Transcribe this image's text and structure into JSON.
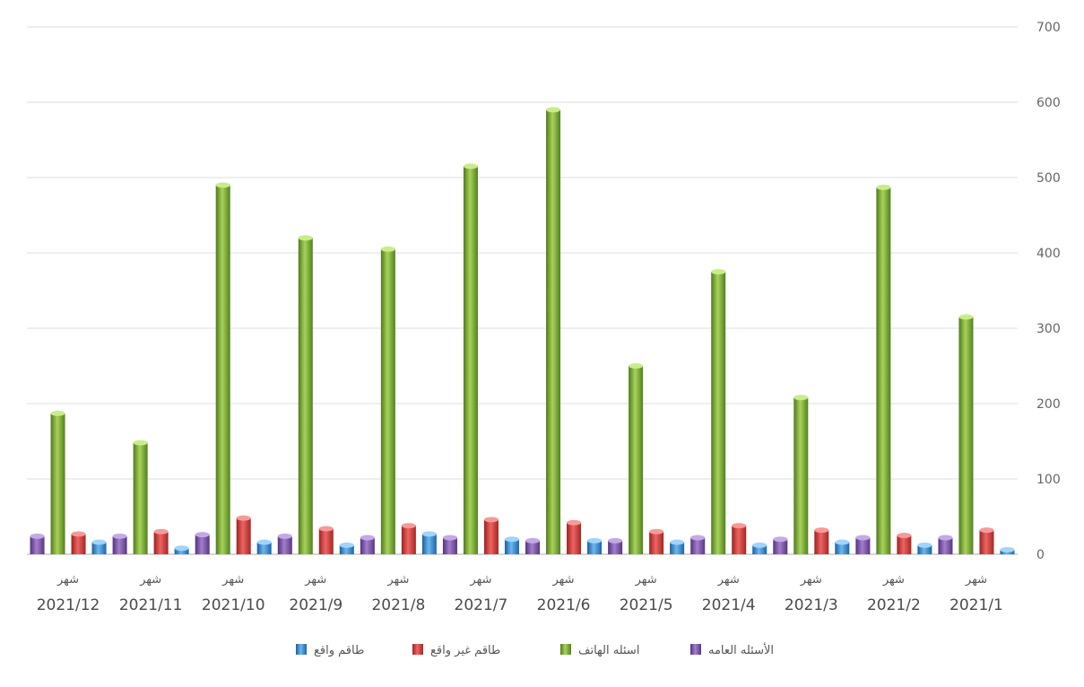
{
  "chart_data": {
    "type": "bar",
    "categories": [
      [
        "شهر",
        "2021/1"
      ],
      [
        "شهر",
        "2021/2"
      ],
      [
        "شهر",
        "2021/3"
      ],
      [
        "شهر",
        "2021/4"
      ],
      [
        "شهر",
        "2021/5"
      ],
      [
        "شهر",
        "2021/6"
      ],
      [
        "شهر",
        "2021/7"
      ],
      [
        "شهر",
        "2021/8"
      ],
      [
        "شهر",
        "2021/9"
      ],
      [
        "شهر",
        "2021/10"
      ],
      [
        "شهر",
        "2021/11"
      ],
      [
        "شهر",
        "2021/12"
      ]
    ],
    "series": [
      {
        "name": "الأسئله العامه",
        "color": "#7a4fa8",
        "values": [
          22,
          22,
          20,
          22,
          18,
          18,
          22,
          22,
          24,
          26,
          24,
          24
        ]
      },
      {
        "name": "اسئله الهاتف",
        "color": "#76a832",
        "values": [
          315,
          487,
          208,
          375,
          250,
          590,
          515,
          405,
          420,
          490,
          148,
          187
        ]
      },
      {
        "name": "طاقم غير واقع",
        "color": "#d23c3a",
        "values": [
          32,
          25,
          32,
          38,
          30,
          42,
          46,
          38,
          34,
          48,
          30,
          27
        ]
      },
      {
        "name": "طاقم واقع",
        "color": "#2e86d1",
        "values": [
          6,
          12,
          16,
          12,
          16,
          18,
          20,
          27,
          12,
          16,
          8,
          16
        ]
      }
    ],
    "y_ticks": [
      0,
      100,
      200,
      300,
      400,
      500,
      600,
      700
    ],
    "ylim": [
      0,
      700
    ],
    "y_axis_side": "right",
    "category_order": "right-to-left",
    "grid": true,
    "legend_position": "bottom",
    "legend_order": [
      "طاقم واقع",
      "طاقم غير واقع",
      "اسئله الهاتف",
      "الأسئله العامه"
    ],
    "title": "",
    "xlabel": "",
    "ylabel": ""
  }
}
